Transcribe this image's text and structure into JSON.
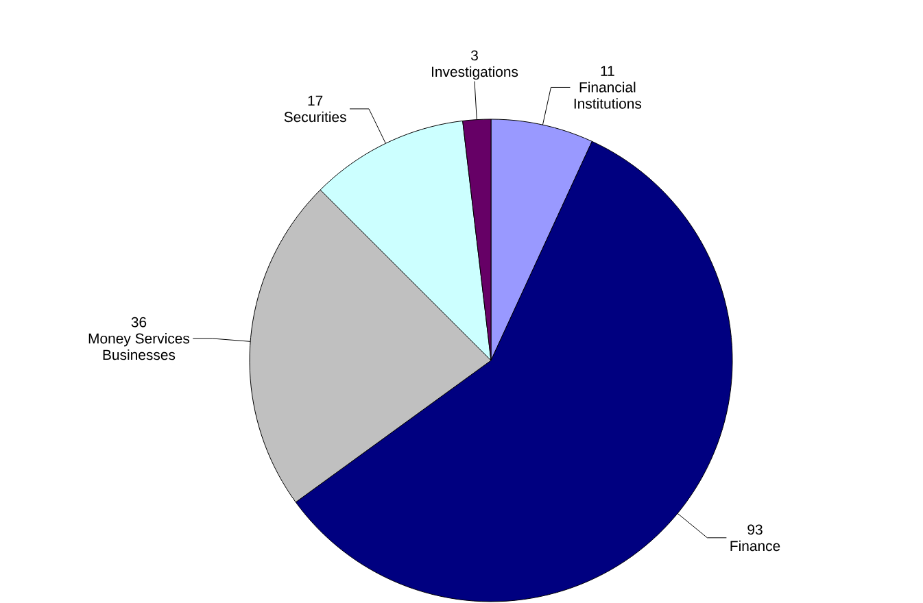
{
  "chart_data": {
    "type": "pie",
    "categories": [
      "Financial Institutions",
      "Finance",
      "Money Services Businesses",
      "Securities",
      "Investigations"
    ],
    "values": [
      11,
      93,
      36,
      17,
      3
    ],
    "colors": [
      "#9999ff",
      "#000080",
      "#c0c0c0",
      "#ccffff",
      "#660066"
    ],
    "data_labels": true
  }
}
